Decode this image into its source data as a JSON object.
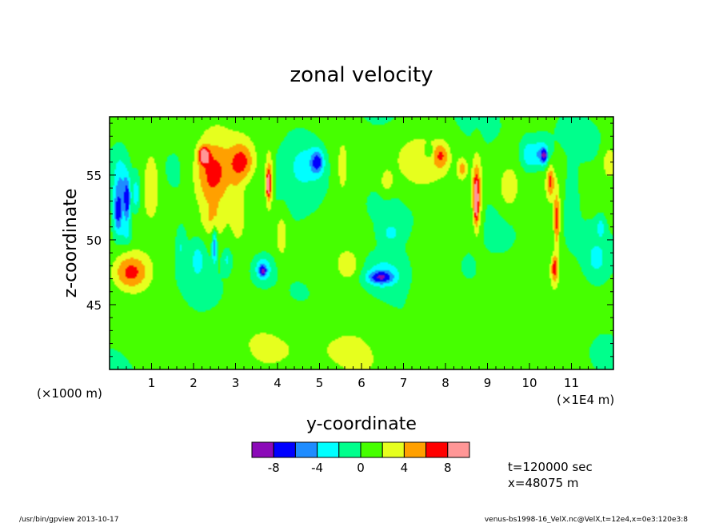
{
  "chart_data": {
    "type": "heatmap",
    "title": "zonal velocity",
    "xlabel": "y-coordinate",
    "ylabel": "z-coordinate",
    "x_unit_left": "(×1000 m)",
    "x_unit_right": "(×1E4 m)",
    "xlim": [
      0,
      120000
    ],
    "ylim": [
      40000,
      59500
    ],
    "x_ticks": [
      "1",
      "2",
      "3",
      "4",
      "5",
      "6",
      "7",
      "8",
      "9",
      "10",
      "11"
    ],
    "x_tick_values": [
      10000,
      20000,
      30000,
      40000,
      50000,
      60000,
      70000,
      80000,
      90000,
      100000,
      110000
    ],
    "y_ticks": [
      "45",
      "50",
      "55"
    ],
    "y_tick_values": [
      45000,
      50000,
      55000
    ],
    "colorbar": {
      "levels": [
        -10,
        -8,
        -6,
        -4,
        -2,
        0,
        2,
        4,
        6,
        8,
        10
      ],
      "labels": [
        "-8",
        "-4",
        "0",
        "4",
        "8"
      ],
      "label_values": [
        -8,
        -4,
        0,
        4,
        8
      ],
      "colors": [
        "#8b0ab8",
        "#0000ff",
        "#1e8cff",
        "#00ffff",
        "#00ff8c",
        "#46ff00",
        "#e6ff1e",
        "#ffa000",
        "#ff0000",
        "#ff9696"
      ]
    },
    "background_value": 0.5,
    "features": [
      {
        "y": 5000,
        "z": 47500,
        "ry": 4500,
        "rz": 1400,
        "v": 6.5
      },
      {
        "y": 4000,
        "z": 50500,
        "ry": 1500,
        "rz": 900,
        "v": -2.5
      },
      {
        "y": 2500,
        "z": 54000,
        "ry": 1800,
        "rz": 2600,
        "v": -4.6
      },
      {
        "y": 4200,
        "z": 53000,
        "ry": 800,
        "rz": 1800,
        "v": -7.2
      },
      {
        "y": 6300,
        "z": 53500,
        "ry": 900,
        "rz": 1400,
        "v": -4.4
      },
      {
        "y": 10000,
        "z": 54500,
        "ry": 1800,
        "rz": 2200,
        "v": 3.5
      },
      {
        "y": 17000,
        "z": 49500,
        "ry": 1200,
        "rz": 1500,
        "v": -2.5
      },
      {
        "y": 21000,
        "z": 48500,
        "ry": 1800,
        "rz": 1500,
        "v": -3
      },
      {
        "y": 24500,
        "z": 55000,
        "ry": 4500,
        "rz": 2600,
        "v": 6.7
      },
      {
        "y": 22500,
        "z": 56500,
        "ry": 1200,
        "rz": 600,
        "v": 9
      },
      {
        "y": 24500,
        "z": 51500,
        "ry": 2500,
        "rz": 1200,
        "v": 2.5
      },
      {
        "y": 25000,
        "z": 49500,
        "ry": 600,
        "rz": 1400,
        "v": -6
      },
      {
        "y": 28000,
        "z": 48500,
        "ry": 1200,
        "rz": 900,
        "v": -3
      },
      {
        "y": 31500,
        "z": 56000,
        "ry": 3000,
        "rz": 1500,
        "v": 5.8
      },
      {
        "y": 30500,
        "z": 52500,
        "ry": 1600,
        "rz": 2000,
        "v": 2.5
      },
      {
        "y": 38000,
        "z": 54500,
        "ry": 900,
        "rz": 2000,
        "v": 6.5
      },
      {
        "y": 37800,
        "z": 54300,
        "ry": 400,
        "rz": 700,
        "v": 9
      },
      {
        "y": 36500,
        "z": 47800,
        "ry": 2500,
        "rz": 1100,
        "v": -4.5
      },
      {
        "y": 36500,
        "z": 47600,
        "ry": 800,
        "rz": 400,
        "v": -6
      },
      {
        "y": 47000,
        "z": 56000,
        "ry": 5000,
        "rz": 2200,
        "v": -3.3
      },
      {
        "y": 49500,
        "z": 56000,
        "ry": 1500,
        "rz": 900,
        "v": -6.2
      },
      {
        "y": 41000,
        "z": 50500,
        "ry": 1500,
        "rz": 2000,
        "v": 2.5
      },
      {
        "y": 55500,
        "z": 55500,
        "ry": 1000,
        "rz": 1600,
        "v": 3
      },
      {
        "y": 57000,
        "z": 48000,
        "ry": 2500,
        "rz": 1000,
        "v": 2.5
      },
      {
        "y": 65000,
        "z": 47500,
        "ry": 5500,
        "rz": 1500,
        "v": -3.4
      },
      {
        "y": 64500,
        "z": 47100,
        "ry": 3000,
        "rz": 500,
        "v": -6.2
      },
      {
        "y": 66000,
        "z": 54500,
        "ry": 1500,
        "rz": 900,
        "v": 3
      },
      {
        "y": 67000,
        "z": 50500,
        "ry": 2500,
        "rz": 800,
        "v": -2.5
      },
      {
        "y": 73000,
        "z": 56000,
        "ry": 5500,
        "rz": 2000,
        "v": 2.4
      },
      {
        "y": 76000,
        "z": 56800,
        "ry": 1000,
        "rz": 500,
        "v": -3
      },
      {
        "y": 79000,
        "z": 56500,
        "ry": 1800,
        "rz": 1000,
        "v": 4.5
      },
      {
        "y": 84000,
        "z": 55500,
        "ry": 1200,
        "rz": 800,
        "v": 4
      },
      {
        "y": 87500,
        "z": 53500,
        "ry": 1200,
        "rz": 3000,
        "v": 5.8
      },
      {
        "y": 87300,
        "z": 53000,
        "ry": 500,
        "rz": 1500,
        "v": 7.6
      },
      {
        "y": 85500,
        "z": 47800,
        "ry": 2000,
        "rz": 1000,
        "v": -2.5
      },
      {
        "y": 95000,
        "z": 54000,
        "ry": 2000,
        "rz": 1500,
        "v": 3
      },
      {
        "y": 100000,
        "z": 56500,
        "ry": 2000,
        "rz": 1200,
        "v": -4.5
      },
      {
        "y": 103000,
        "z": 56600,
        "ry": 1800,
        "rz": 1100,
        "v": -4.6
      },
      {
        "y": 103500,
        "z": 56500,
        "ry": 700,
        "rz": 500,
        "v": -6.2
      },
      {
        "y": 105000,
        "z": 54500,
        "ry": 900,
        "rz": 1200,
        "v": 5.5
      },
      {
        "y": 106500,
        "z": 51500,
        "ry": 700,
        "rz": 2200,
        "v": 6.2
      },
      {
        "y": 106000,
        "z": 47800,
        "ry": 800,
        "rz": 1000,
        "v": 6.5
      },
      {
        "y": 110000,
        "z": 53000,
        "ry": 1500,
        "rz": 2200,
        "v": -2.5
      },
      {
        "y": 116000,
        "z": 48500,
        "ry": 2500,
        "rz": 1500,
        "v": -2.5
      },
      {
        "y": 117000,
        "z": 51000,
        "ry": 1000,
        "rz": 800,
        "v": -3
      },
      {
        "y": 119000,
        "z": 56000,
        "ry": 1500,
        "rz": 1100,
        "v": 3.5
      },
      {
        "y": 2000,
        "z": 52000,
        "ry": 1000,
        "rz": 1500,
        "v": -6
      },
      {
        "y": 50000,
        "z": 42000,
        "ry": 20000,
        "rz": 3000,
        "v": 1.4
      },
      {
        "y": 92000,
        "z": 43000,
        "ry": 15000,
        "rz": 3000,
        "v": 1.4
      },
      {
        "y": 12000,
        "z": 43000,
        "ry": 10000,
        "rz": 2000,
        "v": -0.6
      }
    ]
  },
  "annotations": {
    "time": "t=120000 sec",
    "position": "x=48075 m"
  },
  "footer": {
    "left": "/usr/bin/gpview  2013-10-17",
    "right": "venus-bs1998-16_VelX.nc@VelX,t=12e4,x=0e3:120e3:8"
  }
}
